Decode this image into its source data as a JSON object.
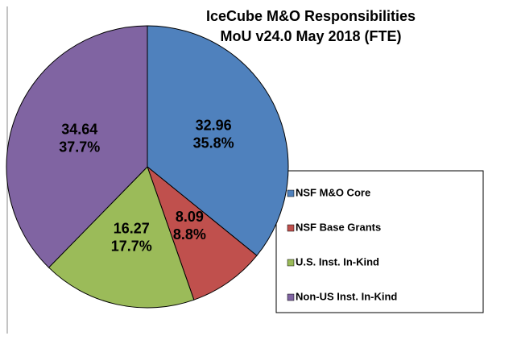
{
  "chart_data": {
    "type": "pie",
    "title": [
      "IceCube M&O Responsibilities",
      "MoU v24.0 May 2018 (FTE)"
    ],
    "categories": [
      "NSF M&O Core",
      "NSF Base Grants",
      "U.S. Inst. In-Kind",
      "Non-US Inst. In-Kind"
    ],
    "values": [
      32.96,
      8.09,
      16.27,
      34.64
    ],
    "percent_labels": [
      "35.8%",
      "8.8%",
      "17.7%",
      "37.7%"
    ],
    "colors": [
      "#4f81bd",
      "#c0504d",
      "#9bbb59",
      "#8064a2"
    ],
    "legend": "right"
  }
}
